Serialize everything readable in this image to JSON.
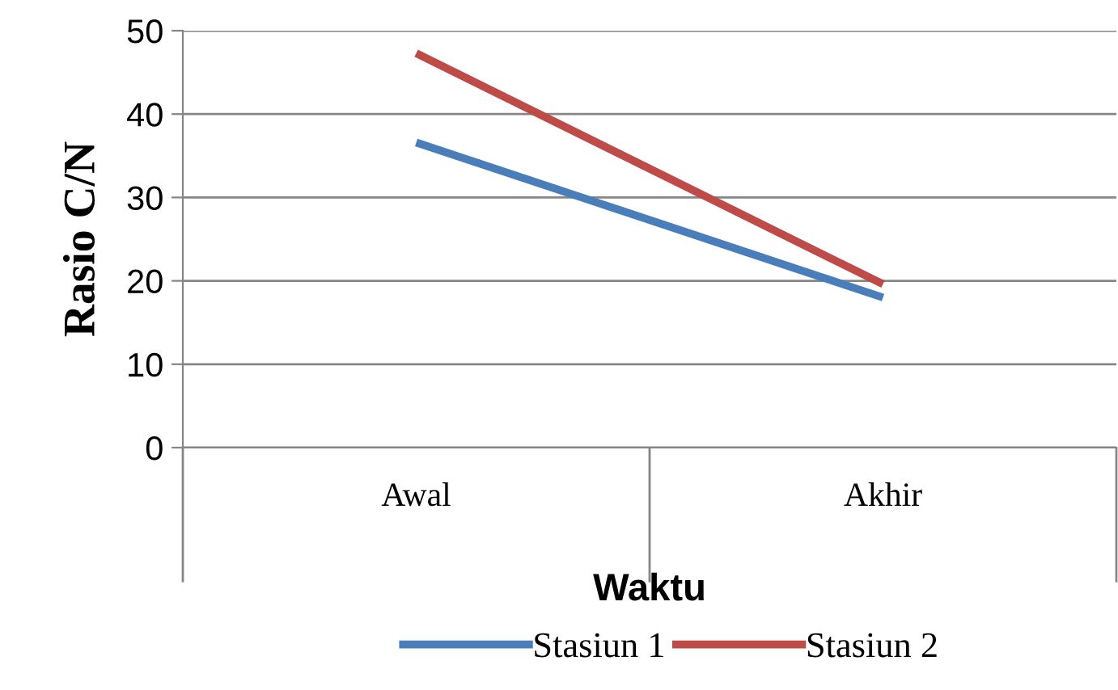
{
  "chart_data": {
    "type": "line",
    "xlabel": "Waktu",
    "ylabel": "Rasio C/N",
    "categories": [
      "Awal",
      "Akhir"
    ],
    "series": [
      {
        "name": "Stasiun 1",
        "color": "#4a7ebb",
        "values": [
          36.6,
          18.0
        ]
      },
      {
        "name": "Stasiun 2",
        "color": "#be4b48",
        "values": [
          47.3,
          19.6
        ]
      }
    ],
    "ylim": [
      0,
      50
    ],
    "yticks": [
      0,
      10,
      20,
      30,
      40,
      50
    ],
    "grid": "y",
    "legend": "bottom",
    "marker": "none",
    "line_style": "solid"
  }
}
